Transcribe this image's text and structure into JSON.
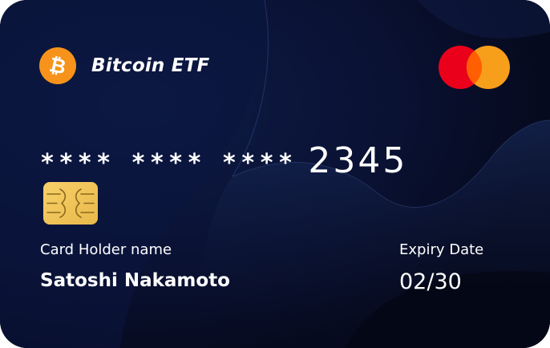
{
  "card": {
    "brand_name": "Bitcoin ETF",
    "brand_logo_glyph": "₿",
    "brand_logo_icon": "bitcoin-icon",
    "network_logo_icon": "mastercard-icon",
    "chip_icon": "emv-chip-icon",
    "number_masked_groups": [
      "****",
      "****",
      "****"
    ],
    "number_last4": "2345",
    "holder_label": "Card Holder name",
    "holder_name": "Satoshi Nakamoto",
    "expiry_label": "Expiry Date",
    "expiry_value": "02/30"
  },
  "colors": {
    "card_background": "#06091c",
    "bitcoin_orange": "#f7931a",
    "mastercard_red": "#eb001b",
    "mastercard_orange": "#f79e1b",
    "mastercard_overlap": "#ff5f00",
    "chip_gold": "#f4c75a",
    "text": "#ffffff"
  }
}
